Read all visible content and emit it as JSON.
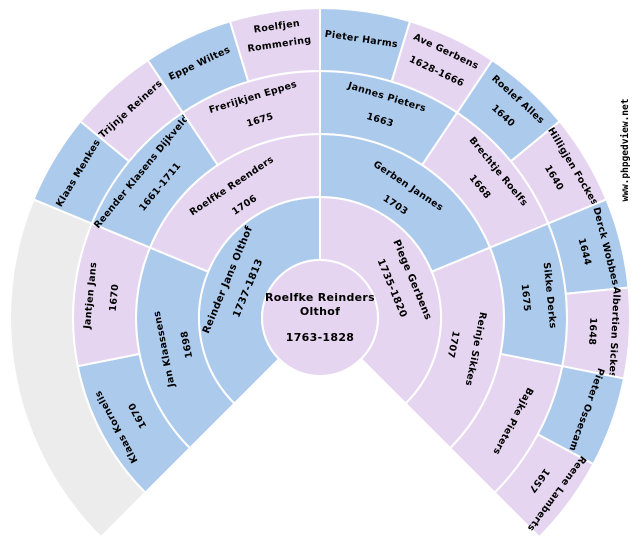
{
  "watermark": "www.phpgedview.net",
  "colors": {
    "male": "#accaec",
    "female": "#e6d5f0",
    "empty": "#ececec",
    "border": "#ffffff",
    "text": "#000000",
    "background": "#ffffff"
  },
  "chart_data": {
    "type": "fan-pedigree-chart",
    "angle_span_degrees": 270,
    "start_angle_degrees": -135,
    "generations": 5,
    "legend": {
      "male_color_meaning": "male",
      "female_color_meaning": "female",
      "empty_color_meaning": "unknown ancestor"
    },
    "center_person": {
      "name": "Roelfke Reinders Olthof",
      "name_lines": [
        "Roelfke Reinders",
        "Olthof"
      ],
      "dates": "1763-1828",
      "sex": "female"
    },
    "rings": [
      {
        "generation": 2,
        "segments": [
          {
            "name": "Reinder Jans Olthof",
            "dates": "1737-1813",
            "sex": "male"
          },
          {
            "name": "Piege Gerbens",
            "dates": "1735-1820",
            "sex": "female"
          }
        ]
      },
      {
        "generation": 3,
        "segments": [
          {
            "name": "Jan Klaassens",
            "dates": "1698",
            "sex": "male"
          },
          {
            "name": "Roelfke Reenders",
            "dates": "1706",
            "sex": "female"
          },
          {
            "name": "Gerben Jannes",
            "dates": "1703",
            "sex": "male"
          },
          {
            "name": "Reinje Sikkes",
            "dates": "1707",
            "sex": "female"
          }
        ]
      },
      {
        "generation": 4,
        "segments": [
          {
            "name": "Klaas Kornelis",
            "dates": "1670",
            "sex": "male"
          },
          {
            "name": "Jantjen Jans",
            "dates": "1670",
            "sex": "female"
          },
          {
            "name": "Reender Klasens Dijkveld",
            "dates": "1661-1711",
            "sex": "male"
          },
          {
            "name": "Frerijkjen Eppes",
            "dates": "1675",
            "sex": "female"
          },
          {
            "name": "Jannes Pieters",
            "dates": "1663",
            "sex": "male"
          },
          {
            "name": "Brechtje Roelfs",
            "dates": "1668",
            "sex": "female"
          },
          {
            "name": "Sikke Derks",
            "dates": "1675",
            "sex": "male"
          },
          {
            "name": "Bajke Pieters",
            "dates": "",
            "sex": "female"
          }
        ]
      },
      {
        "generation": 5,
        "segments": [
          {
            "empty": true
          },
          {
            "empty": true
          },
          {
            "empty": true
          },
          {
            "empty": true
          },
          {
            "name": "Klaas Menkes",
            "dates": "",
            "sex": "male"
          },
          {
            "name": "Trijnje Reiners",
            "dates": "",
            "sex": "female"
          },
          {
            "name": "Eppe Wiltes",
            "dates": "",
            "sex": "male"
          },
          {
            "name": "Roelfjen Rommering",
            "name_lines": [
              "Roelfjen",
              "Rommering"
            ],
            "dates": "",
            "sex": "female"
          },
          {
            "name": "Pieter Harms",
            "dates": "",
            "sex": "male"
          },
          {
            "name": "Ave Gerbens",
            "dates": "1628-1666",
            "sex": "female"
          },
          {
            "name": "Roelef Alles",
            "dates": "1640",
            "sex": "male"
          },
          {
            "name": "Hilligjen Fockes",
            "dates": "1640",
            "sex": "female"
          },
          {
            "name": "Derck Wobbes",
            "dates": "1644",
            "sex": "male"
          },
          {
            "name": "Albertien Sickes",
            "dates": "1648",
            "sex": "female"
          },
          {
            "name": "Pieter Ossecamp",
            "dates": "",
            "sex": "male"
          },
          {
            "name": "Reene Lamberts",
            "dates": "1657",
            "sex": "female"
          }
        ]
      }
    ]
  }
}
